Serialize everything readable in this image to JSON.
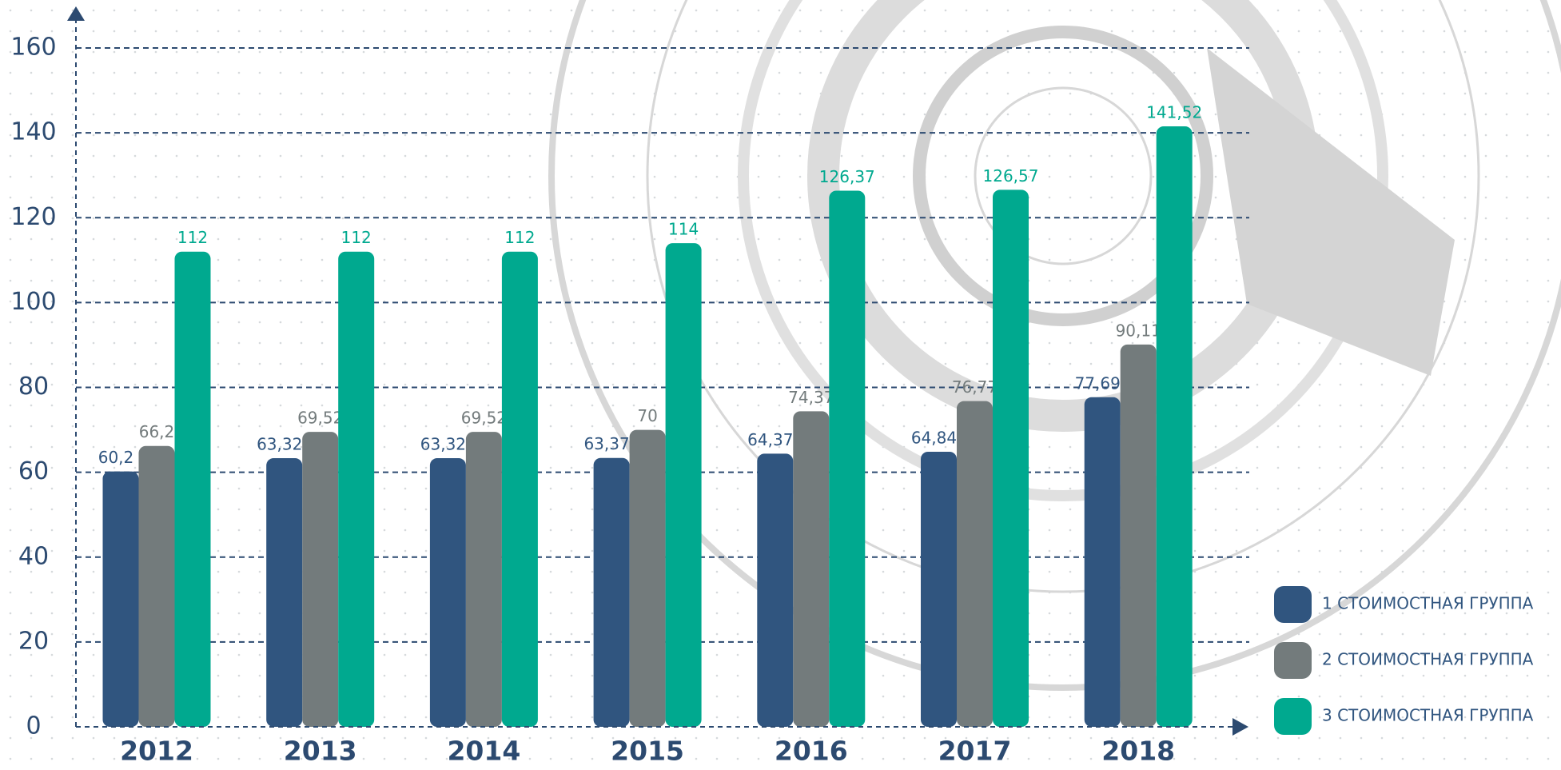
{
  "chart_data": {
    "type": "bar",
    "categories": [
      "2012",
      "2013",
      "2014",
      "2015",
      "2016",
      "2017",
      "2018"
    ],
    "series": [
      {
        "name": "1 СТОИМОСТНАЯ ГРУППА",
        "color": "#30557f",
        "values": [
          60.2,
          63.32,
          63.32,
          63.37,
          64.37,
          64.84,
          77.69
        ],
        "value_labels": [
          "60,2",
          "63,32",
          "63,32",
          "63,37",
          "64,37",
          "64,84",
          "77,69"
        ]
      },
      {
        "name": "2 СТОИМОСТНАЯ ГРУППА",
        "color": "#737b7c",
        "values": [
          66.2,
          69.52,
          69.52,
          70,
          74.37,
          76.77,
          90.11
        ],
        "value_labels": [
          "66,2",
          "69,52",
          "69,52",
          "70",
          "74,37",
          "76,77",
          "90,11"
        ]
      },
      {
        "name": "3 СТОИМОСТНАЯ ГРУППА",
        "color": "#00a98f",
        "values": [
          112,
          112,
          112,
          114,
          126.37,
          126.57,
          141.52
        ],
        "value_labels": [
          "112",
          "112",
          "112",
          "114",
          "126,37",
          "126,57",
          "141,52"
        ]
      }
    ],
    "ylim": [
      0,
      160
    ],
    "yticks": [
      0,
      20,
      40,
      60,
      80,
      100,
      120,
      140,
      160
    ],
    "grid": true,
    "legend": "lower right"
  }
}
